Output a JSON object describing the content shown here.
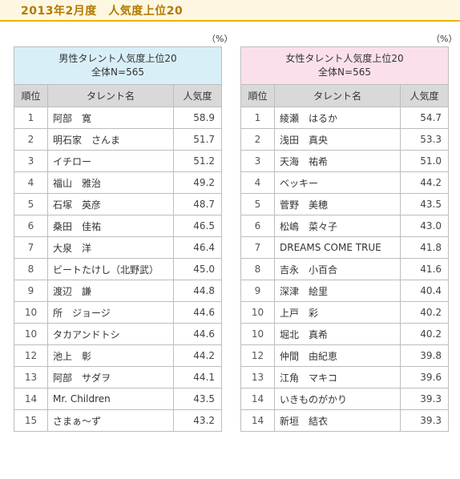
{
  "header": {
    "title": "2013年2月度　人気度上位20"
  },
  "tables": [
    {
      "percent_label": "（%）",
      "caption_line1": "男性タレント人気度上位20",
      "caption_line2": "全体N=565",
      "col_rank": "順位",
      "col_name": "タレント名",
      "col_value": "人気度",
      "rows": [
        {
          "rank": "1",
          "name": "阿部　寛",
          "value": "58.9"
        },
        {
          "rank": "2",
          "name": "明石家　さんま",
          "value": "51.7"
        },
        {
          "rank": "3",
          "name": "イチロー",
          "value": "51.2"
        },
        {
          "rank": "4",
          "name": "福山　雅治",
          "value": "49.2"
        },
        {
          "rank": "5",
          "name": "石塚　英彦",
          "value": "48.7"
        },
        {
          "rank": "6",
          "name": "桑田　佳祐",
          "value": "46.5"
        },
        {
          "rank": "7",
          "name": "大泉　洋",
          "value": "46.4"
        },
        {
          "rank": "8",
          "name": "ビートたけし（北野武）",
          "value": "45.0"
        },
        {
          "rank": "9",
          "name": "渡辺　謙",
          "value": "44.8"
        },
        {
          "rank": "10",
          "name": "所　ジョージ",
          "value": "44.6"
        },
        {
          "rank": "10",
          "name": "タカアンドトシ",
          "value": "44.6"
        },
        {
          "rank": "12",
          "name": "池上　彰",
          "value": "44.2"
        },
        {
          "rank": "13",
          "name": "阿部　サダヲ",
          "value": "44.1"
        },
        {
          "rank": "14",
          "name": "Mr. Children",
          "value": "43.5"
        },
        {
          "rank": "15",
          "name": "さまぁ～ず",
          "value": "43.2"
        }
      ]
    },
    {
      "percent_label": "（%）",
      "caption_line1": "女性タレント人気度上位20",
      "caption_line2": "全体N=565",
      "col_rank": "順位",
      "col_name": "タレント名",
      "col_value": "人気度",
      "rows": [
        {
          "rank": "1",
          "name": "綾瀬　はるか",
          "value": "54.7"
        },
        {
          "rank": "2",
          "name": "浅田　真央",
          "value": "53.3"
        },
        {
          "rank": "3",
          "name": "天海　祐希",
          "value": "51.0"
        },
        {
          "rank": "4",
          "name": "ベッキー",
          "value": "44.2"
        },
        {
          "rank": "5",
          "name": "菅野　美穂",
          "value": "43.5"
        },
        {
          "rank": "6",
          "name": "松嶋　菜々子",
          "value": "43.0"
        },
        {
          "rank": "7",
          "name": "DREAMS COME TRUE",
          "value": "41.8"
        },
        {
          "rank": "8",
          "name": "吉永　小百合",
          "value": "41.6"
        },
        {
          "rank": "9",
          "name": "深津　絵里",
          "value": "40.4"
        },
        {
          "rank": "10",
          "name": "上戸　彩",
          "value": "40.2"
        },
        {
          "rank": "10",
          "name": "堀北　真希",
          "value": "40.2"
        },
        {
          "rank": "12",
          "name": "仲間　由紀恵",
          "value": "39.8"
        },
        {
          "rank": "13",
          "name": "江角　マキコ",
          "value": "39.6"
        },
        {
          "rank": "14",
          "name": "いきものがかり",
          "value": "39.3"
        },
        {
          "rank": "14",
          "name": "新垣　結衣",
          "value": "39.3"
        }
      ]
    }
  ]
}
